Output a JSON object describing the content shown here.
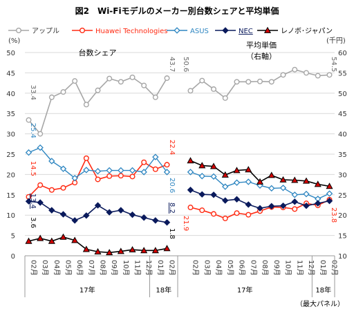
{
  "title": "図2　Wi-Fiモデルのメーカー別台数シェアと平均単価",
  "note": "（最大パネル）",
  "colors": {
    "apple": "#a6a6a6",
    "huawei": "#ff2a12",
    "asus": "#2e86c1",
    "nec": "#0a1a5c",
    "lenovo": "#000000",
    "lenovo_marker": "#d40000",
    "grid": "#d9d9d9",
    "axis_text": "#333333"
  },
  "chart_data": {
    "type": "line",
    "title": "図2　Wi-Fiモデルのメーカー別台数シェアと平均単価",
    "legend_position": "top",
    "grid": true,
    "y_left": {
      "unit": "(%)",
      "ylim": [
        0,
        50
      ],
      "ticks": [
        "0",
        "5",
        "10",
        "15",
        "20",
        "25",
        "30",
        "35",
        "40",
        "45",
        "50"
      ]
    },
    "y_right": {
      "unit": "(千円)",
      "ylim": [
        10,
        60
      ],
      "ticks": [
        "10",
        "15",
        "20",
        "25",
        "30",
        "35",
        "40",
        "45",
        "50",
        "55",
        "60"
      ]
    },
    "categories": [
      "02月",
      "03月",
      "04月",
      "05月",
      "06月",
      "07月",
      "08月",
      "09月",
      "10月",
      "11月",
      "12月",
      "01月",
      "02月"
    ],
    "year_labels": [
      "17年",
      "18年"
    ],
    "series_names": {
      "apple": "アップル",
      "huawei": "Huawei Technologies",
      "asus": "ASUS",
      "nec": "NEC",
      "lenovo": "レノボ･ジャパン"
    },
    "panels": [
      {
        "label": "台数シェア",
        "axis": "left",
        "series": [
          {
            "key": "apple",
            "values": [
              33.4,
              30.0,
              39.0,
              40.3,
              43.0,
              37.2,
              40.7,
              43.6,
              42.8,
              43.9,
              41.9,
              39.0,
              43.7
            ]
          },
          {
            "key": "huawei",
            "values": [
              14.5,
              17.4,
              16.2,
              16.7,
              18.0,
              24.0,
              18.8,
              19.6,
              19.7,
              19.5,
              23.0,
              21.3,
              22.4
            ]
          },
          {
            "key": "asus",
            "values": [
              25.4,
              26.6,
              23.3,
              21.4,
              19.1,
              21.1,
              20.8,
              21.0,
              21.0,
              21.0,
              20.6,
              24.3,
              20.6
            ]
          },
          {
            "key": "nec",
            "values": [
              13.4,
              13.1,
              11.2,
              10.2,
              8.7,
              9.9,
              12.4,
              10.7,
              11.2,
              10.1,
              9.4,
              8.7,
              8.2
            ]
          },
          {
            "key": "lenovo",
            "values": [
              3.6,
              4.3,
              3.6,
              4.6,
              3.8,
              1.6,
              1.0,
              0.8,
              1.1,
              1.5,
              1.3,
              1.3,
              1.8
            ]
          }
        ],
        "annotations": {
          "first": {
            "apple": "33.4",
            "huawei": "14.5",
            "asus": "25.4",
            "nec": "13.4",
            "lenovo": "3.6"
          },
          "last": {
            "apple": "43.7",
            "huawei": "22.4",
            "asus": "20.6",
            "nec": "8.2",
            "lenovo": "1.8"
          }
        }
      },
      {
        "label": "平均単価\n（右軸）",
        "axis": "right",
        "series": [
          {
            "key": "apple",
            "values": [
              50.6,
              53.1,
              51.0,
              48.8,
              52.8,
              52.8,
              52.9,
              52.8,
              54.5,
              55.8,
              55.0,
              54.3,
              54.5
            ]
          },
          {
            "key": "huawei",
            "values": [
              21.9,
              21.2,
              20.3,
              19.2,
              20.5,
              20.1,
              21.0,
              22.0,
              21.9,
              21.5,
              22.9,
              22.4,
              23.8
            ]
          },
          {
            "key": "asus",
            "values": [
              30.6,
              29.6,
              29.5,
              27.0,
              28.0,
              28.2,
              27.3,
              26.6,
              26.7,
              25.0,
              25.2,
              24.0,
              25.3
            ]
          },
          {
            "key": "nec",
            "values": [
              26.2,
              25.1,
              25.0,
              23.6,
              23.9,
              22.6,
              21.7,
              22.2,
              22.3,
              23.3,
              22.3,
              22.9,
              23.5
            ]
          },
          {
            "key": "lenovo",
            "values": [
              33.4,
              32.2,
              32.0,
              29.9,
              31.0,
              31.2,
              28.2,
              29.8,
              28.7,
              28.6,
              28.4,
              27.6,
              27.1
            ]
          }
        ],
        "annotations": {
          "first": {
            "apple": "50.6",
            "huawei": "21.9"
          },
          "last": {
            "apple": "54.5",
            "huawei": "23.8"
          }
        }
      }
    ]
  }
}
